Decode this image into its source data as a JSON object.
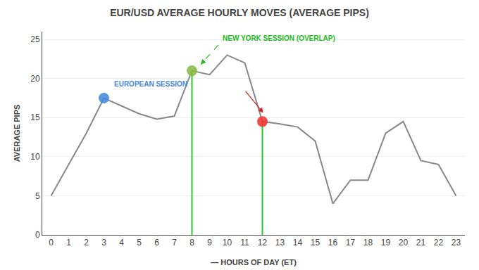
{
  "chart_data": {
    "type": "line",
    "title": "EUR/USD AVERAGE HOURLY MOVES (AVERAGE PIPS)",
    "x_label": "— HOURS OF DAY (ET)",
    "y_label": "AVERAGE PIPS",
    "x": [
      0,
      1,
      2,
      3,
      4,
      5,
      6,
      7,
      8,
      9,
      10,
      11,
      12,
      13,
      14,
      15,
      16,
      17,
      18,
      19,
      20,
      21,
      22,
      23
    ],
    "values": [
      5,
      9,
      13,
      17.5,
      16.5,
      15.5,
      14.8,
      15.2,
      21,
      20.5,
      23,
      22,
      14.5,
      14.2,
      13.8,
      12,
      4,
      7,
      7,
      13,
      14.5,
      9.5,
      9,
      5
    ],
    "color": "#888888",
    "xlim": [
      -0.5,
      23.5
    ],
    "xticks": [
      0,
      1,
      2,
      3,
      4,
      5,
      6,
      7,
      8,
      9,
      10,
      11,
      12,
      13,
      14,
      15,
      16,
      17,
      18,
      19,
      20,
      21,
      22,
      23
    ],
    "ylim": [
      0,
      26
    ],
    "yticks": [
      0,
      5,
      10,
      15,
      20,
      25
    ],
    "grid": "y",
    "markers": [
      {
        "x": 3,
        "y": 17.5,
        "color": "#4488DD"
      },
      {
        "x": 8,
        "y": 21,
        "color": "#88BB44"
      },
      {
        "x": 12,
        "y": 14.5,
        "color": "#EE3333"
      }
    ],
    "vlines": [
      {
        "x": 8,
        "y0": 0,
        "y1": 21,
        "color": "#22CC22"
      },
      {
        "x": 12,
        "y0": 0,
        "y1": 14.5,
        "color": "#22CC22"
      }
    ],
    "arrows": [
      {
        "from": [
          9.5,
          24.3
        ],
        "to": [
          8.5,
          21.8
        ],
        "color": "#22BB22",
        "line_style": "dashed"
      },
      {
        "from": [
          11.0,
          18.5
        ],
        "to": [
          12.05,
          15.6
        ],
        "color": "#CC2222",
        "line_style": "solid"
      }
    ],
    "annotations": [
      {
        "text": "EUROPEAN SESSION",
        "x": 3,
        "y": 17.5,
        "color": "#4488DD"
      },
      {
        "text": "NEW YORK SESSION (OVERLAP)",
        "x": 9.5,
        "y": 24.3,
        "color": "#22BB22"
      }
    ]
  }
}
